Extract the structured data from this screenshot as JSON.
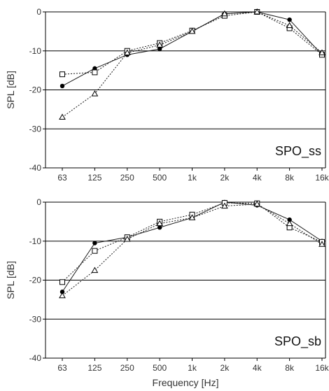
{
  "chart_data": [
    {
      "type": "line",
      "title": "SPO_ss",
      "xlabel": "",
      "ylabel": "SPL [dB]",
      "ylim": [
        -40,
        0
      ],
      "yticks": [
        0,
        -10,
        -20,
        -30,
        -40
      ],
      "categories": [
        "63",
        "125",
        "250",
        "500",
        "1k",
        "2k",
        "4k",
        "8k",
        "16k"
      ],
      "grid": "horizontal",
      "series": [
        {
          "marker": "filled-circle",
          "line": "solid",
          "values": [
            -19,
            -14.5,
            -11,
            -9.5,
            -5,
            -0.5,
            0,
            -2,
            -11
          ]
        },
        {
          "marker": "open-square",
          "line": "dotted",
          "values": [
            -16,
            -15.5,
            -10,
            -8,
            -4.8,
            -1,
            0,
            -4.2,
            -11
          ]
        },
        {
          "marker": "open-triangle",
          "line": "dotted",
          "values": [
            -27,
            -21,
            -10.5,
            -8.5,
            -5,
            -0.5,
            0,
            -3.5,
            -10.5
          ]
        }
      ]
    },
    {
      "type": "line",
      "title": "SPO_sb",
      "xlabel": "Frequency [Hz]",
      "ylabel": "SPL [dB]",
      "ylim": [
        -40,
        0
      ],
      "yticks": [
        0,
        -10,
        -20,
        -30,
        -40
      ],
      "categories": [
        "63",
        "125",
        "250",
        "500",
        "1k",
        "2k",
        "4k",
        "8k",
        "16k"
      ],
      "grid": "horizontal",
      "series": [
        {
          "marker": "filled-circle",
          "line": "solid",
          "values": [
            -23,
            -10.5,
            -9,
            -6.5,
            -4,
            0,
            -0.8,
            -4.5,
            -10
          ]
        },
        {
          "marker": "open-square",
          "line": "dotted",
          "values": [
            -20.5,
            -12.5,
            -9,
            -5,
            -3.2,
            -0.2,
            -0.3,
            -6.5,
            -10.2
          ]
        },
        {
          "marker": "open-triangle",
          "line": "dotted",
          "values": [
            -24,
            -17.5,
            -9.5,
            -5.5,
            -4,
            -1,
            -0.5,
            -5.5,
            -10.8
          ]
        }
      ]
    }
  ]
}
